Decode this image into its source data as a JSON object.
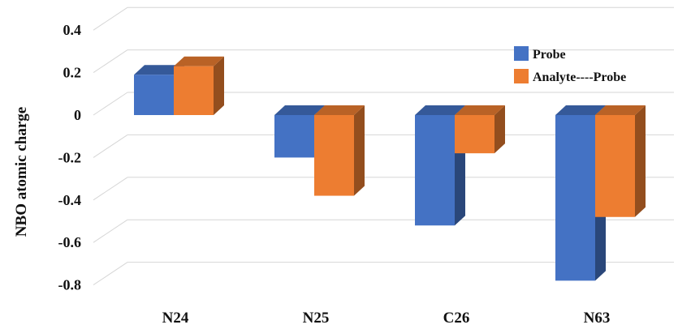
{
  "chart_data": {
    "type": "bar",
    "title": "",
    "xlabel": "",
    "ylabel": "NBO atomic charge",
    "ylim": [
      -0.8,
      0.4
    ],
    "yticks": [
      0.4,
      0.2,
      0,
      -0.2,
      -0.4,
      -0.6,
      -0.8
    ],
    "ytick_labels": [
      "0.4",
      "0.2",
      "0",
      "-0.2",
      "-0.4",
      "-0.6",
      "-0.8"
    ],
    "categories": [
      "N24",
      "N25",
      "C26",
      "N63"
    ],
    "series": [
      {
        "name": "Probe",
        "values": [
          0.19,
          -0.2,
          -0.52,
          -0.78
        ],
        "color": "#4472C4"
      },
      {
        "name": "Analyte----Probe",
        "values": [
          0.23,
          -0.38,
          -0.18,
          -0.48
        ],
        "color": "#ED7D31"
      }
    ],
    "grid": true,
    "legend_position": "top-right",
    "style": "3d-bar"
  }
}
